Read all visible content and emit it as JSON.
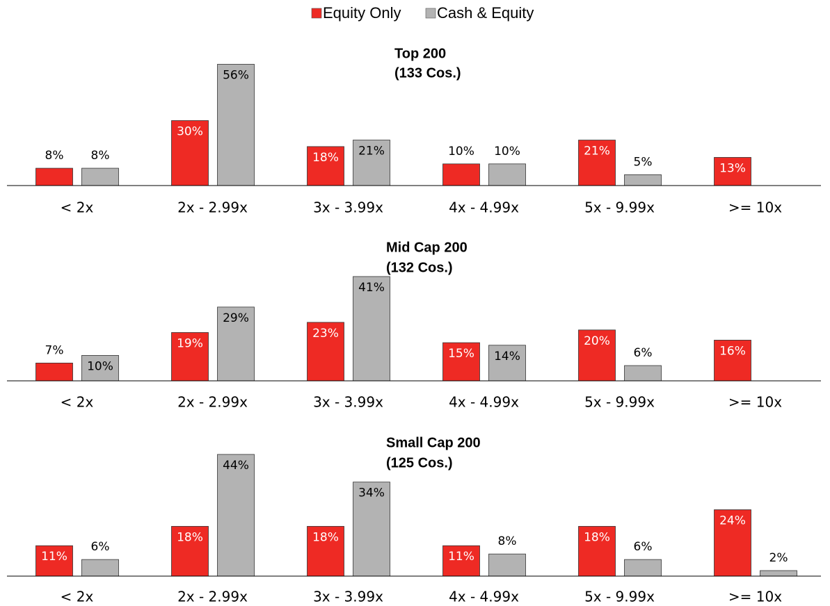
{
  "chart_data": [
    {
      "type": "bar",
      "title": "Top 200",
      "subtitle": "(133 Cos.)",
      "categories": [
        "< 2x",
        "2x - 2.99x",
        "3x - 3.99x",
        "4x - 4.99x",
        "5x - 9.99x",
        ">= 10x"
      ],
      "ylim": [
        0,
        60
      ],
      "series": [
        {
          "name": "Equity Only",
          "color": "#ee2a24",
          "values": [
            8,
            30,
            18,
            10,
            21,
            13
          ],
          "value_labels": [
            "8%",
            "30%",
            "18%",
            "10%",
            "21%",
            "13%"
          ]
        },
        {
          "name": "Cash & Equity",
          "color": "#b3b3b3",
          "values": [
            8,
            56,
            21,
            10,
            5,
            null
          ],
          "value_labels": [
            "8%",
            "56%",
            "21%",
            "10%",
            "5%",
            null
          ]
        }
      ]
    },
    {
      "type": "bar",
      "title": "Mid Cap 200",
      "subtitle": "(132 Cos.)",
      "categories": [
        "< 2x",
        "2x - 2.99x",
        "3x - 3.99x",
        "4x - 4.99x",
        "5x - 9.99x",
        ">= 10x"
      ],
      "ylim": [
        0,
        50
      ],
      "series": [
        {
          "color": "#ee2a24",
          "values": [
            7,
            19,
            23,
            15,
            20,
            16
          ],
          "value_labels": [
            "7%",
            "19%",
            "23%",
            "15%",
            "20%",
            "16%"
          ]
        },
        {
          "color": "#b3b3b3",
          "values": [
            10,
            29,
            41,
            14,
            6,
            null
          ],
          "value_labels": [
            "10%",
            "29%",
            "41%",
            "14%",
            "6%",
            null
          ]
        }
      ]
    },
    {
      "type": "bar",
      "title": "Small Cap 200",
      "subtitle": "(125 Cos.)",
      "categories": [
        "< 2x",
        "2x - 2.99x",
        "3x - 3.99x",
        "4x - 4.99x",
        "5x - 9.99x",
        ">= 10x"
      ],
      "ylim": [
        0,
        50
      ],
      "series": [
        {
          "color": "#ee2a24",
          "values": [
            11,
            18,
            18,
            11,
            18,
            24
          ],
          "value_labels": [
            "11%",
            "18%",
            "18%",
            "11%",
            "18%",
            "24%"
          ]
        },
        {
          "color": "#b3b3b3",
          "values": [
            6,
            44,
            34,
            8,
            6,
            2
          ],
          "value_labels": [
            "6%",
            "44%",
            "34%",
            "8%",
            "6%",
            "2%"
          ]
        }
      ]
    }
  ]
}
